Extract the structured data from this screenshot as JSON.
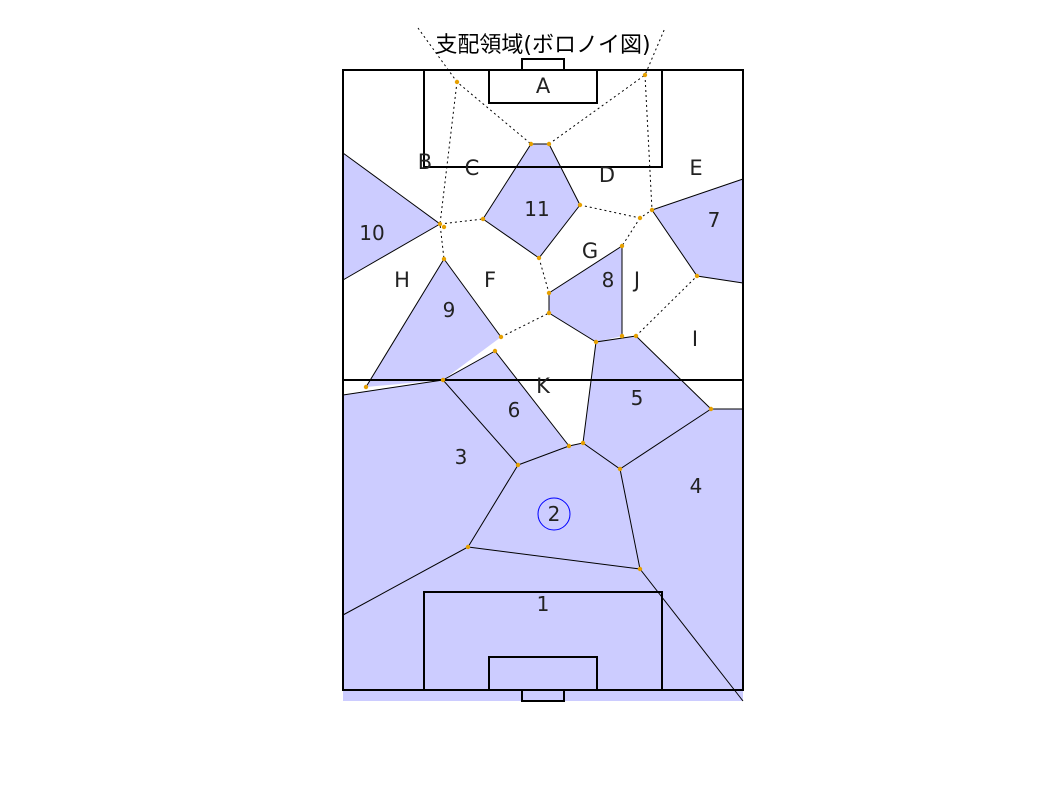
{
  "title": "支配領域(ボロノイ図)",
  "colors": {
    "team_region": "#ccccff",
    "field_line": "#000000",
    "voronoi_edge": "#000000",
    "vertex_marker": "#e6a000",
    "highlight_circle": "#0000ff"
  },
  "opponents": [
    "A",
    "B",
    "C",
    "D",
    "E",
    "F",
    "G",
    "H",
    "I",
    "J",
    "K"
  ],
  "players": [
    "1",
    "2",
    "3",
    "4",
    "5",
    "6",
    "7",
    "8",
    "9",
    "10",
    "11"
  ],
  "highlighted_player": "2"
}
